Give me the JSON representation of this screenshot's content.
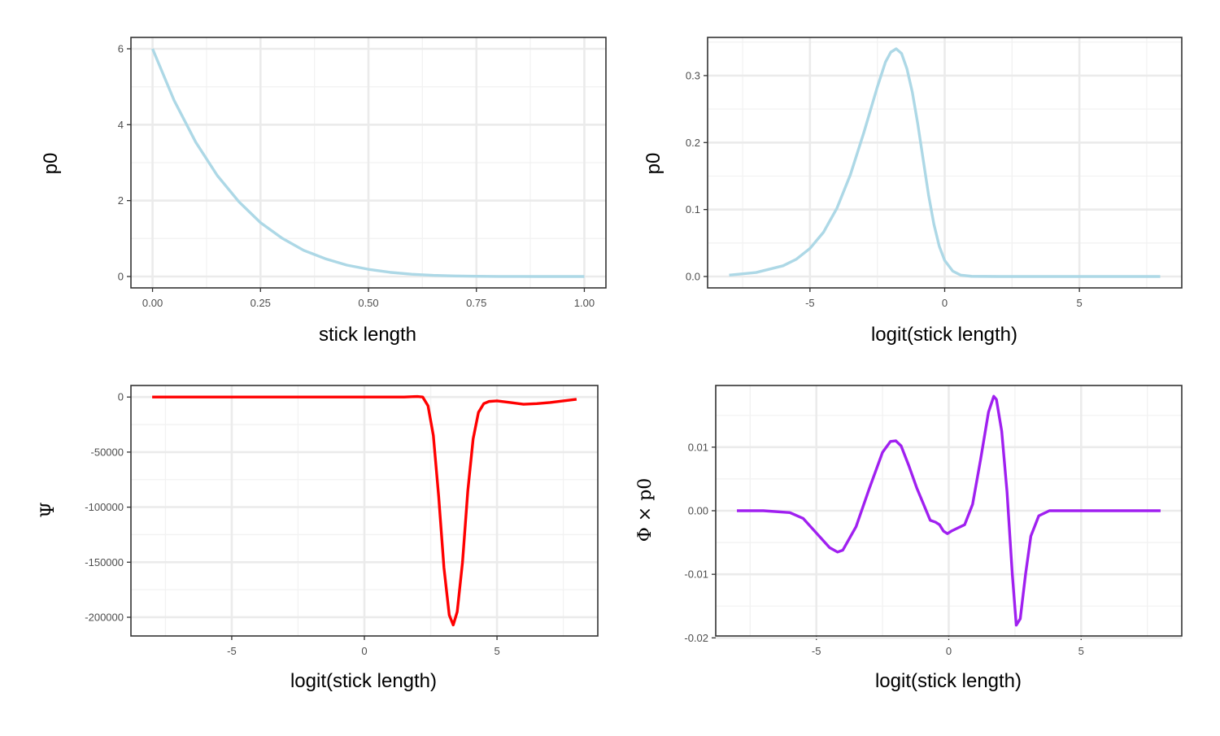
{
  "colors": {
    "panel_border": "#333333",
    "grid_major": "#ebebeb",
    "grid_minor": "#f2f2f2",
    "tick_text": "#4d4d4d",
    "series_top": "#add8e6",
    "series_psi": "#ff0000",
    "series_phi": "#a020f0"
  },
  "chart_data": [
    {
      "type": "line",
      "xlabel": "stick length",
      "ylabel": "p0",
      "xlim": [
        -0.05,
        1.05
      ],
      "ylim": [
        -0.3,
        6.3
      ],
      "x_ticks": [
        0,
        0.25,
        0.5,
        0.75,
        1
      ],
      "x_tick_labels": [
        "0.00",
        "0.25",
        "0.50",
        "0.75",
        "1.00"
      ],
      "y_ticks": [
        0,
        2,
        4,
        6
      ],
      "y_tick_labels": [
        "0",
        "2",
        "4",
        "6"
      ],
      "grid": true,
      "color": "#add8e6",
      "series": [
        {
          "x": [
            0,
            0.05,
            0.1,
            0.15,
            0.2,
            0.25,
            0.3,
            0.35,
            0.4,
            0.45,
            0.5,
            0.55,
            0.6,
            0.65,
            0.7,
            0.75,
            0.8,
            0.85,
            0.9,
            0.95,
            1.0
          ],
          "y": [
            6.0,
            4.64,
            3.54,
            2.66,
            1.97,
            1.42,
            1.01,
            0.69,
            0.47,
            0.3,
            0.19,
            0.11,
            0.06,
            0.03,
            0.015,
            0.006,
            0.002,
            0.0005,
            0.0001,
            0.0,
            0.0
          ]
        }
      ]
    },
    {
      "type": "line",
      "xlabel": "logit(stick length)",
      "ylabel": "p0",
      "xlim": [
        -8.8,
        8.8
      ],
      "ylim": [
        -0.017,
        0.357
      ],
      "x_ticks": [
        -5,
        0,
        5
      ],
      "x_tick_labels": [
        "-5",
        "0",
        "5"
      ],
      "y_ticks": [
        0,
        0.1,
        0.2,
        0.3
      ],
      "y_tick_labels": [
        "0.0",
        "0.1",
        "0.2",
        "0.3"
      ],
      "grid": true,
      "color": "#add8e6",
      "series": [
        {
          "x": [
            -8,
            -7,
            -6,
            -5.5,
            -5,
            -4.5,
            -4,
            -3.5,
            -3,
            -2.5,
            -2.2,
            -2,
            -1.8,
            -1.6,
            -1.4,
            -1.2,
            -1,
            -0.8,
            -0.6,
            -0.4,
            -0.2,
            0,
            0.3,
            0.6,
            1,
            2,
            4,
            6,
            8
          ],
          "y": [
            0.002,
            0.006,
            0.016,
            0.026,
            0.042,
            0.066,
            0.102,
            0.152,
            0.215,
            0.283,
            0.32,
            0.335,
            0.34,
            0.333,
            0.31,
            0.275,
            0.228,
            0.175,
            0.122,
            0.078,
            0.045,
            0.024,
            0.008,
            0.002,
            0.0003,
            0.0,
            0.0,
            0.0,
            0.0
          ]
        }
      ]
    },
    {
      "type": "line",
      "xlabel": "logit(stick length)",
      "ylabel": "Ψ",
      "xlim": [
        -8.8,
        8.8
      ],
      "ylim": [
        -217000,
        10500
      ],
      "x_ticks": [
        -5,
        0,
        5
      ],
      "x_tick_labels": [
        "-5",
        "0",
        "5"
      ],
      "y_ticks": [
        0,
        -50000,
        -100000,
        -150000,
        -200000
      ],
      "y_tick_labels": [
        "0",
        "-50000",
        "-100000",
        "-150000",
        "-200000"
      ],
      "grid": true,
      "color": "#ff0000",
      "series": [
        {
          "x": [
            -8,
            -6,
            -4,
            -2,
            0,
            1,
            1.5,
            2,
            2.2,
            2.4,
            2.6,
            2.8,
            3,
            3.2,
            3.35,
            3.5,
            3.7,
            3.9,
            4.1,
            4.3,
            4.5,
            4.7,
            5,
            5.5,
            6,
            6.5,
            7,
            7.5,
            8
          ],
          "y": [
            0,
            0,
            0,
            0,
            0,
            0,
            0,
            500,
            0,
            -8000,
            -35000,
            -90000,
            -155000,
            -198000,
            -207000,
            -195000,
            -150000,
            -85000,
            -38000,
            -14000,
            -6000,
            -4000,
            -3500,
            -5000,
            -6500,
            -6000,
            -5000,
            -3500,
            -2000
          ]
        }
      ]
    },
    {
      "type": "line",
      "xlabel": "logit(stick length)",
      "ylabel": "Φ × p0",
      "xlim": [
        -8.8,
        8.8
      ],
      "ylim": [
        -0.0197,
        0.0197
      ],
      "x_ticks": [
        -5,
        0,
        5
      ],
      "x_tick_labels": [
        "-5",
        "0",
        "5"
      ],
      "y_ticks": [
        0.01,
        0,
        -0.01,
        -0.02
      ],
      "y_tick_labels": [
        "0.01",
        "0.00",
        "-0.01",
        "-0.02"
      ],
      "grid": true,
      "color": "#a020f0",
      "series": [
        {
          "x": [
            -8,
            -7,
            -6,
            -5.5,
            -5,
            -4.5,
            -4.2,
            -4,
            -3.5,
            -3,
            -2.5,
            -2.2,
            -2,
            -1.8,
            -1.5,
            -1.2,
            -0.9,
            -0.7,
            -0.5,
            -0.35,
            -0.2,
            -0.05,
            0.1,
            0.3,
            0.6,
            0.9,
            1.2,
            1.5,
            1.7,
            1.8,
            2,
            2.2,
            2.4,
            2.55,
            2.7,
            2.9,
            3.1,
            3.4,
            3.8,
            4.5,
            6,
            8
          ],
          "y": [
            0,
            0,
            -0.0003,
            -0.0012,
            -0.0035,
            -0.0058,
            -0.0065,
            -0.0062,
            -0.0025,
            0.0035,
            0.0092,
            0.0109,
            0.011,
            0.0102,
            0.007,
            0.0035,
            0.0005,
            -0.0015,
            -0.0018,
            -0.0022,
            -0.0032,
            -0.0036,
            -0.0032,
            -0.0028,
            -0.0022,
            0.001,
            0.008,
            0.0155,
            0.018,
            0.0175,
            0.0125,
            0.003,
            -0.01,
            -0.018,
            -0.017,
            -0.01,
            -0.004,
            -0.0008,
            0,
            0,
            0,
            0
          ]
        }
      ]
    }
  ]
}
